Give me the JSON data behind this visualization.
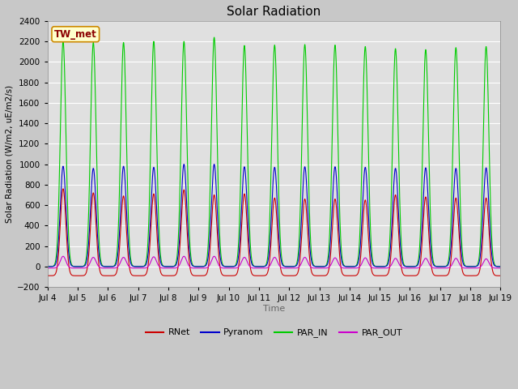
{
  "title": "Solar Radiation",
  "ylabel": "Solar Radiation (W/m2, uE/m2/s)",
  "xlabel": "Time",
  "ylim": [
    -200,
    2400
  ],
  "yticks": [
    -200,
    0,
    200,
    400,
    600,
    800,
    1000,
    1200,
    1400,
    1600,
    1800,
    2000,
    2200,
    2400
  ],
  "num_days": 15,
  "xtick_labels": [
    "Jul 4",
    "Jul 5",
    "Jul 6",
    "Jul 7",
    "Jul 8",
    "Jul 9",
    "Jul 10",
    "Jul 11",
    "Jul 12",
    "Jul 13",
    "Jul 14",
    "Jul 15",
    "Jul 16",
    "Jul 17",
    "Jul 18",
    "Jul 19"
  ],
  "colors": {
    "RNet": "#cc0000",
    "Pyranom": "#0000cc",
    "PAR_IN": "#00cc00",
    "PAR_OUT": "#cc00cc"
  },
  "line_width": 0.8,
  "legend_label": "TW_met",
  "fig_bg_color": "#c8c8c8",
  "plot_bg_color": "#e0e0e0",
  "grid_color": "#ffffff",
  "par_in_peaks": [
    2200,
    2190,
    2190,
    2200,
    2200,
    2240,
    2160,
    2165,
    2170,
    2165,
    2150,
    2130,
    2120,
    2140,
    2150
  ],
  "pyranom_peaks": [
    980,
    960,
    980,
    970,
    1000,
    1000,
    975,
    970,
    975,
    975,
    970,
    960,
    965,
    960,
    965
  ],
  "rnet_peaks": [
    760,
    720,
    690,
    710,
    750,
    700,
    710,
    670,
    660,
    660,
    650,
    700,
    680,
    670,
    670
  ],
  "par_out_peaks": [
    100,
    90,
    90,
    95,
    100,
    100,
    90,
    90,
    90,
    85,
    85,
    80,
    80,
    80,
    75
  ],
  "rnet_night": -90,
  "par_out_night": -15,
  "pyranom_night": 0,
  "par_in_night": 0,
  "peak_sigma_hours": 2.2,
  "peak_hour": 12.5
}
